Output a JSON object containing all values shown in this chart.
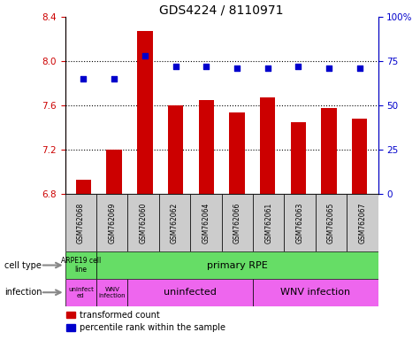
{
  "title": "GDS4224 / 8110971",
  "samples": [
    "GSM762068",
    "GSM762069",
    "GSM762060",
    "GSM762062",
    "GSM762064",
    "GSM762066",
    "GSM762061",
    "GSM762063",
    "GSM762065",
    "GSM762067"
  ],
  "transformed_count": [
    6.93,
    7.2,
    8.27,
    7.6,
    7.65,
    7.54,
    7.67,
    7.45,
    7.58,
    7.48
  ],
  "percentile_rank": [
    65,
    65,
    78,
    72,
    72,
    71,
    71,
    72,
    71,
    71
  ],
  "ylim_left": [
    6.8,
    8.4
  ],
  "ylim_right": [
    0,
    100
  ],
  "yticks_left": [
    6.8,
    7.2,
    7.6,
    8.0,
    8.4
  ],
  "yticks_right": [
    0,
    25,
    50,
    75,
    100
  ],
  "ytick_labels_right": [
    "0",
    "25",
    "50",
    "75",
    "100%"
  ],
  "bar_color": "#cc0000",
  "dot_color": "#0000cc",
  "cell_type_green": "#66dd66",
  "infection_pink": "#ee66ee",
  "sample_gray": "#cccccc",
  "title_fontsize": 10,
  "tick_fontsize": 7.5,
  "label_fontsize": 7,
  "bar_width": 0.5
}
